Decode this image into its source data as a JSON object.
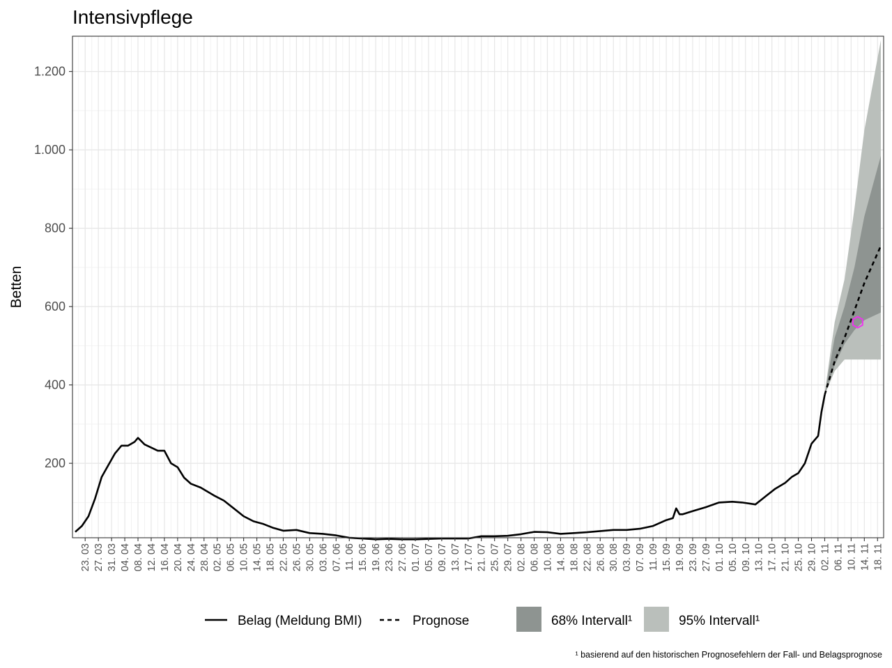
{
  "chart_data": {
    "type": "line",
    "title": "Intensivpflege",
    "ylabel": "Betten",
    "xlabel": "",
    "ylim": [
      10,
      1290
    ],
    "yticks": [
      200,
      400,
      600,
      800,
      1000,
      1200
    ],
    "ytick_labels": [
      "200",
      "400",
      "600",
      "800",
      "1.000",
      "1.200"
    ],
    "x_start": "2020-03-20",
    "x_end": "2020-11-19",
    "xticks": [
      "23. 03",
      "27. 03",
      "31. 03",
      "04. 04",
      "08. 04",
      "12. 04",
      "16. 04",
      "20. 04",
      "24. 04",
      "28. 04",
      "02. 05",
      "06. 05",
      "10. 05",
      "14. 05",
      "18. 05",
      "22. 05",
      "26. 05",
      "30. 05",
      "03. 06",
      "07. 06",
      "11. 06",
      "15. 06",
      "19. 06",
      "23. 06",
      "27. 06",
      "01. 07",
      "05. 07",
      "09. 07",
      "13. 07",
      "17. 07",
      "21. 07",
      "25. 07",
      "29. 07",
      "02. 08",
      "06. 08",
      "10. 08",
      "14. 08",
      "18. 08",
      "22. 08",
      "26. 08",
      "30. 08",
      "03. 09",
      "07. 09",
      "11. 09",
      "15. 09",
      "19. 09",
      "23. 09",
      "27. 09",
      "01. 10",
      "05. 10",
      "09. 10",
      "13. 10",
      "17. 10",
      "21. 10",
      "25. 10",
      "29. 10",
      "02. 11",
      "06. 11",
      "10. 11",
      "14. 11",
      "18. 11"
    ],
    "grid": true,
    "legend_position": "bottom",
    "series": [
      {
        "name": "Belag (Meldung BMI)",
        "style": "solid",
        "color": "#000000",
        "x": [
          "2020-03-20",
          "2020-03-22",
          "2020-03-24",
          "2020-03-26",
          "2020-03-28",
          "2020-03-30",
          "2020-04-01",
          "2020-04-03",
          "2020-04-05",
          "2020-04-07",
          "2020-04-08",
          "2020-04-10",
          "2020-04-12",
          "2020-04-14",
          "2020-04-16",
          "2020-04-18",
          "2020-04-20",
          "2020-04-22",
          "2020-04-24",
          "2020-04-27",
          "2020-05-01",
          "2020-05-04",
          "2020-05-07",
          "2020-05-10",
          "2020-05-13",
          "2020-05-16",
          "2020-05-19",
          "2020-05-22",
          "2020-05-26",
          "2020-05-30",
          "2020-06-03",
          "2020-06-07",
          "2020-06-11",
          "2020-06-15",
          "2020-06-19",
          "2020-06-23",
          "2020-06-27",
          "2020-07-01",
          "2020-07-05",
          "2020-07-09",
          "2020-07-13",
          "2020-07-17",
          "2020-07-21",
          "2020-07-25",
          "2020-07-29",
          "2020-08-02",
          "2020-08-06",
          "2020-08-10",
          "2020-08-14",
          "2020-08-18",
          "2020-08-22",
          "2020-08-26",
          "2020-08-30",
          "2020-09-03",
          "2020-09-07",
          "2020-09-11",
          "2020-09-15",
          "2020-09-17",
          "2020-09-18",
          "2020-09-19",
          "2020-09-20",
          "2020-09-23",
          "2020-09-27",
          "2020-10-01",
          "2020-10-05",
          "2020-10-08",
          "2020-10-12",
          "2020-10-15",
          "2020-10-18",
          "2020-10-21",
          "2020-10-23",
          "2020-10-25",
          "2020-10-27",
          "2020-10-29",
          "2020-10-31",
          "2020-11-01",
          "2020-11-02"
        ],
        "y": [
          25,
          40,
          65,
          110,
          165,
          195,
          225,
          245,
          245,
          255,
          265,
          248,
          240,
          232,
          232,
          200,
          190,
          163,
          148,
          138,
          118,
          105,
          85,
          65,
          52,
          45,
          35,
          28,
          30,
          22,
          20,
          16,
          10,
          8,
          6,
          7,
          6,
          6,
          7,
          8,
          8,
          8,
          14,
          14,
          15,
          19,
          25,
          24,
          20,
          22,
          24,
          27,
          30,
          30,
          33,
          40,
          55,
          60,
          85,
          70,
          70,
          78,
          88,
          100,
          102,
          100,
          95,
          115,
          135,
          150,
          165,
          175,
          200,
          250,
          270,
          330,
          375
        ]
      },
      {
        "name": "Prognose",
        "style": "dashed",
        "color": "#000000",
        "x": [
          "2020-11-02",
          "2020-11-05",
          "2020-11-08",
          "2020-11-11",
          "2020-11-14",
          "2020-11-19"
        ],
        "y": [
          375,
          460,
          520,
          590,
          660,
          755
        ]
      }
    ],
    "bands": [
      {
        "name": "95% Intervall¹",
        "color": "#babfbb",
        "x": [
          "2020-11-02",
          "2020-11-05",
          "2020-11-08",
          "2020-11-11",
          "2020-11-14",
          "2020-11-19"
        ],
        "low": [
          375,
          435,
          465,
          465,
          465,
          465
        ],
        "high": [
          380,
          560,
          670,
          850,
          1050,
          1280
        ]
      },
      {
        "name": "68% Intervall¹",
        "color": "#8e9491",
        "x": [
          "2020-11-02",
          "2020-11-05",
          "2020-11-08",
          "2020-11-11",
          "2020-11-14",
          "2020-11-19"
        ],
        "low": [
          375,
          450,
          505,
          540,
          565,
          585
        ],
        "high": [
          378,
          520,
          600,
          700,
          830,
          985
        ]
      }
    ],
    "marker": {
      "x": "2020-11-12",
      "y": 560,
      "color": "#ee33ee"
    },
    "footnote": "¹ basierend auf den historischen Prognosefehlern der Fall- und Belagsprognose"
  }
}
